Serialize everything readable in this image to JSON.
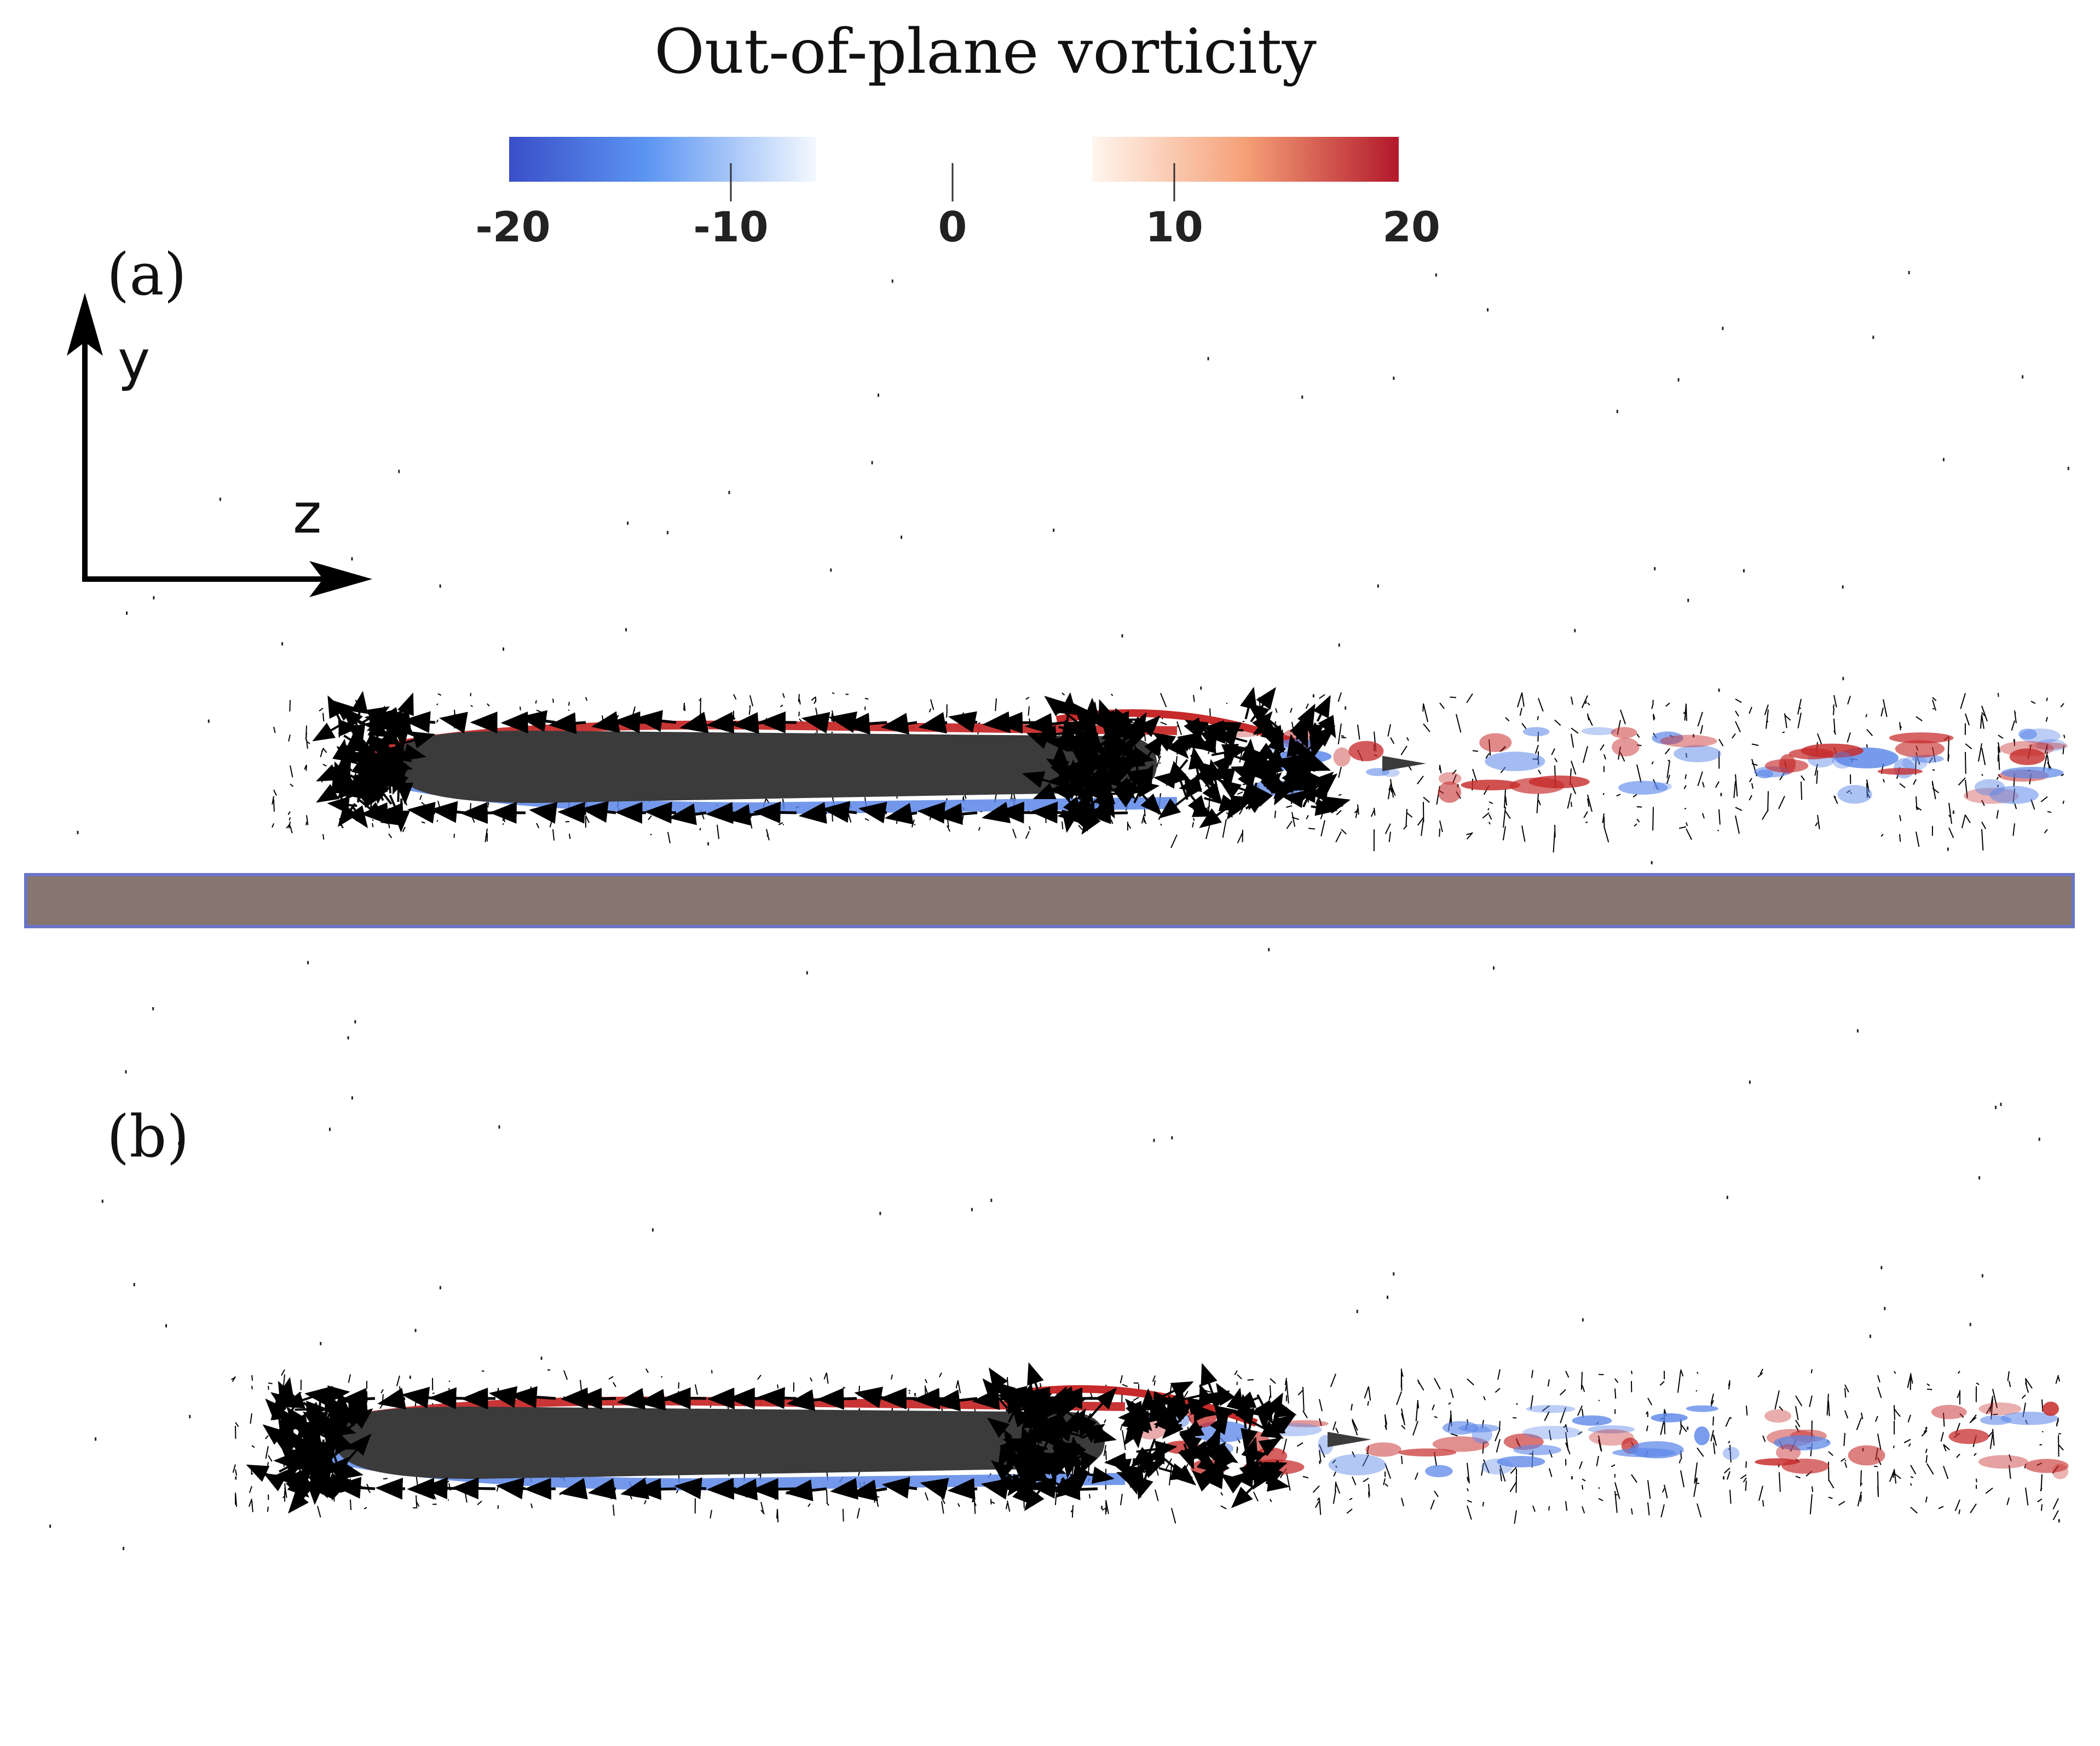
{
  "colorbar": {
    "title": "Out-of-plane vorticity",
    "ticks": [
      "-20",
      "-10",
      "0",
      "10",
      "20"
    ],
    "range": [
      -20,
      20
    ],
    "negative_colors": [
      "#3a4fc8",
      "#6aa4f4",
      "#eef5fd"
    ],
    "positive_colors": [
      "#fdf2e8",
      "#f59a6c",
      "#b2182b"
    ]
  },
  "axes": {
    "vertical": "y",
    "horizontal": "z"
  },
  "panels": [
    {
      "label": "(a)",
      "has_ground": true
    },
    {
      "label": "(b)",
      "has_ground": false
    }
  ],
  "colors": {
    "body": "#3b3b3b",
    "ground": "#877670",
    "ground_border": "#6a74c8",
    "vector": "#000000",
    "positive": "#c62a2a",
    "negative": "#5b86e8"
  }
}
